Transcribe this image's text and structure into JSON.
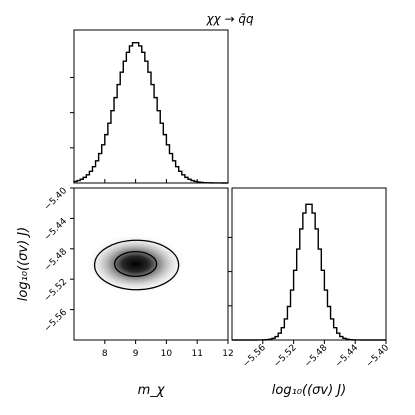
{
  "title": "χχ → q̄q",
  "chart_data": {
    "type": "corner",
    "parameters": [
      {
        "label": "m_χ",
        "range": [
          7.0,
          12.0
        ],
        "ticks": [
          8,
          9,
          10,
          11,
          12
        ],
        "tick_labels": [
          "8",
          "9",
          "10",
          "11",
          "12"
        ],
        "mean": 9.0,
        "sigma": 0.65
      },
      {
        "label": "log₁₀((σv)   J)",
        "range": [
          -5.6,
          -5.4
        ],
        "ticks": [
          -5.56,
          -5.52,
          -5.48,
          -5.44,
          -5.4
        ],
        "tick_labels": [
          "−5.56",
          "−5.52",
          "−5.48",
          "−5.44",
          "−5.40"
        ],
        "mean": -5.5,
        "sigma": 0.0155
      }
    ],
    "panels": [
      {
        "name": "marginal-m-chi",
        "type": "histogram",
        "parameter": 0
      },
      {
        "name": "joint",
        "type": "2d-density-contours",
        "parameters": [
          0,
          1
        ],
        "contour_levels": 2
      },
      {
        "name": "marginal-log-sigma-v",
        "type": "histogram",
        "parameter": 1
      }
    ],
    "ylabel_joint": "log₁₀((σv)   J)",
    "xlabel_joint": "m_χ",
    "xlabel_right": "log₁₀((σv)   J)"
  }
}
